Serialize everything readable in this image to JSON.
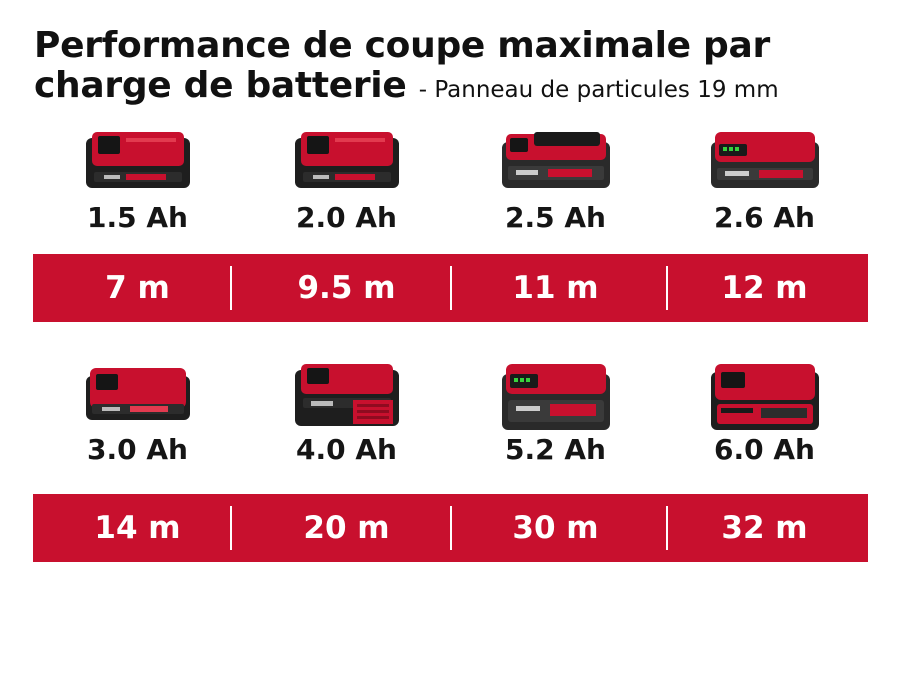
{
  "title": "Performance de coupe maximale par charge de batterie",
  "title_line1": "Performance de coupe maximale par",
  "title_line2": "charge de batterie",
  "subtitle": "- Panneau de particules 19 mm",
  "colors": {
    "accent": "#c8102e",
    "text": "#111111",
    "battery_dark": "#1e1e1e"
  },
  "rows": [
    {
      "batteries": [
        {
          "capacity": "1.5 Ah",
          "time": "7 m",
          "icon": "battery-icon"
        },
        {
          "capacity": "2.0 Ah",
          "time": "9.5 m",
          "icon": "battery-icon"
        },
        {
          "capacity": "2.5 Ah",
          "time": "11 m",
          "icon": "battery-icon"
        },
        {
          "capacity": "2.6 Ah",
          "time": "12 m",
          "icon": "battery-icon"
        }
      ]
    },
    {
      "batteries": [
        {
          "capacity": "3.0 Ah",
          "time": "14 m",
          "icon": "battery-icon"
        },
        {
          "capacity": "4.0 Ah",
          "time": "20 m",
          "icon": "battery-icon"
        },
        {
          "capacity": "5.2 Ah",
          "time": "30 m",
          "icon": "battery-icon"
        },
        {
          "capacity": "6.0 Ah",
          "time": "32 m",
          "icon": "battery-icon"
        }
      ]
    }
  ]
}
